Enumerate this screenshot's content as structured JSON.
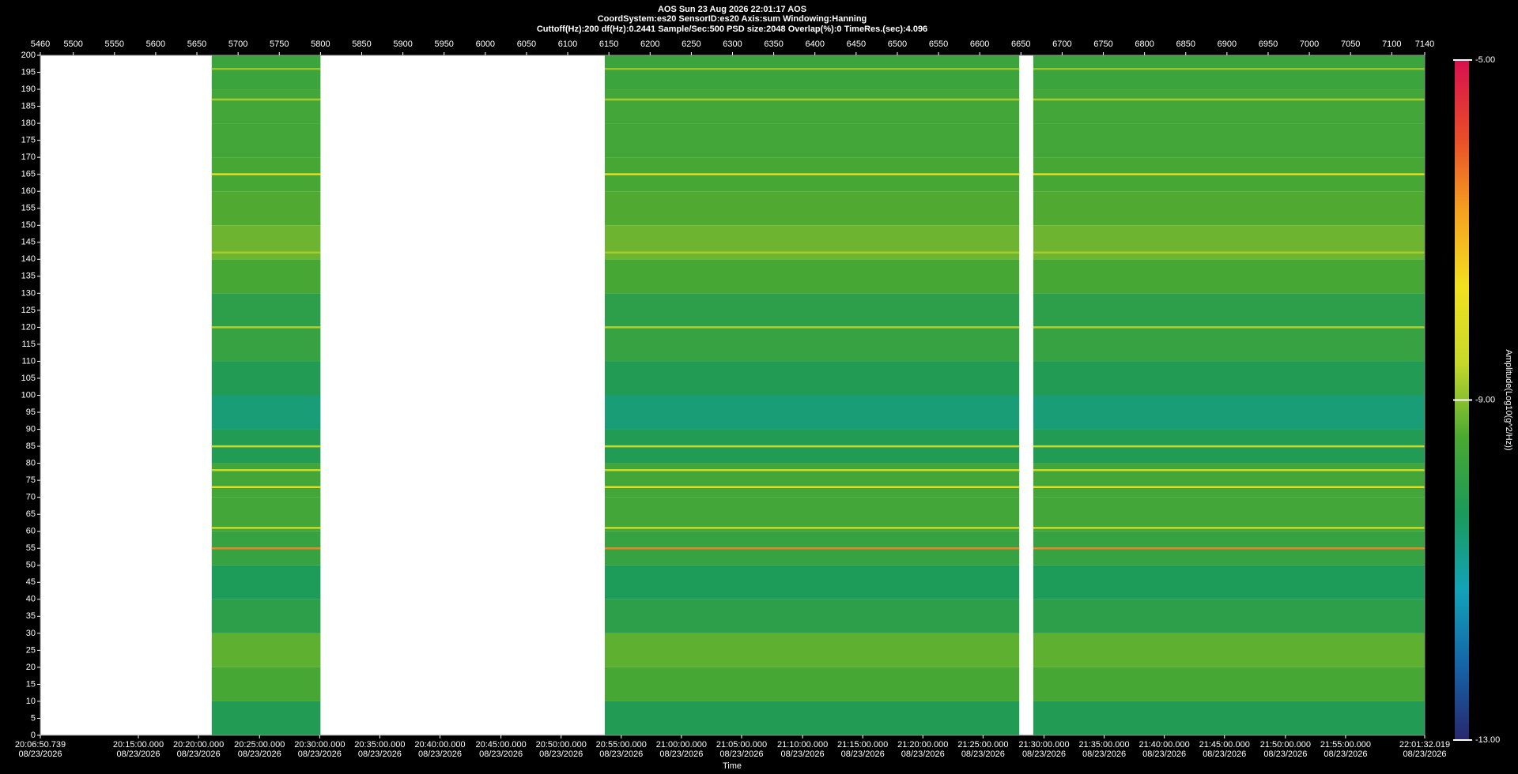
{
  "chart_data": {
    "type": "spectrogram",
    "header": [
      "AOS  Sun 23 Aug 2026 22:01:17  AOS",
      "CoordSystem:es20   SensorID:es20    Axis:sum    Windowing:Hanning",
      "Cuttoff(Hz):200      df(Hz):0.2441      Sample/Sec:500      PSD size:2048      Overlap(%):0          TimeRes.(sec):4.096"
    ],
    "xlabel": "Time",
    "xlim": [
      5460,
      7140
    ],
    "xticks": [
      5460,
      5500,
      5550,
      5600,
      5650,
      5700,
      5750,
      5800,
      5850,
      5900,
      5950,
      6000,
      6050,
      6100,
      6150,
      6200,
      6250,
      6300,
      6350,
      6400,
      6450,
      6500,
      6550,
      6600,
      6650,
      6700,
      6750,
      6800,
      6850,
      6900,
      6950,
      7000,
      7050,
      7100,
      7140
    ],
    "time_ticks": [
      {
        "value": 5460,
        "label": "20:06:50.739"
      },
      {
        "value": 5579,
        "label": "20:15:00.000"
      },
      {
        "value": 5652,
        "label": "20:20:00.000"
      },
      {
        "value": 5726,
        "label": "20:25:00.000"
      },
      {
        "value": 5799,
        "label": "20:30:00.000"
      },
      {
        "value": 5872,
        "label": "20:35:00.000"
      },
      {
        "value": 5945,
        "label": "20:40:00.000"
      },
      {
        "value": 6019,
        "label": "20:45:00.000"
      },
      {
        "value": 6092,
        "label": "20:50:00.000"
      },
      {
        "value": 6165,
        "label": "20:55:00.000"
      },
      {
        "value": 6238,
        "label": "21:00:00.000"
      },
      {
        "value": 6311,
        "label": "21:05:00.000"
      },
      {
        "value": 6385,
        "label": "21:10:00.000"
      },
      {
        "value": 6458,
        "label": "21:15:00.000"
      },
      {
        "value": 6531,
        "label": "21:20:00.000"
      },
      {
        "value": 6604,
        "label": "21:25:00.000"
      },
      {
        "value": 6678,
        "label": "21:30:00.000"
      },
      {
        "value": 6751,
        "label": "21:35:00.000"
      },
      {
        "value": 6824,
        "label": "21:40:00.000"
      },
      {
        "value": 6897,
        "label": "21:45:00.000"
      },
      {
        "value": 6971,
        "label": "21:50:00.000"
      },
      {
        "value": 7044,
        "label": "21:55:00.000"
      },
      {
        "value": 7140,
        "label": "22:01:32.019"
      }
    ],
    "time_tick_dates": [
      "08/23/2026",
      "08/23/2026",
      "08/23/2026",
      "08/23/2026",
      "08/23/2026",
      "08/23/2026",
      "08/23/2026",
      "08/23/2026",
      "08/23/2026",
      "08/23/2026",
      "08/23/2026",
      "08/23/2026",
      "08/23/2026",
      "08/23/2026",
      "08/23/2026",
      "08/23/2026",
      "08/23/2026",
      "08/23/2026",
      "08/23/2026",
      "08/23/2026",
      "08/23/2026",
      "08/23/2026",
      "08/23/2026"
    ],
    "ylim": [
      0,
      200
    ],
    "yticks": [
      0,
      5,
      10,
      15,
      20,
      25,
      30,
      35,
      40,
      45,
      50,
      55,
      60,
      65,
      70,
      75,
      80,
      85,
      90,
      95,
      100,
      105,
      110,
      115,
      120,
      125,
      130,
      135,
      140,
      145,
      150,
      155,
      160,
      165,
      170,
      175,
      180,
      185,
      190,
      195,
      200
    ],
    "segments": [
      [
        5668,
        5800
      ],
      [
        6145,
        6648
      ],
      [
        6665,
        7140
      ]
    ],
    "profile": {
      "bins": [
        0,
        10,
        20,
        30,
        40,
        50,
        60,
        70,
        80,
        90,
        100,
        110,
        120,
        130,
        140,
        150,
        160,
        170,
        180,
        190,
        200
      ],
      "values": [
        -10.2,
        -9.5,
        -9.3,
        -10,
        -10.3,
        -9.8,
        -9.6,
        -9.6,
        -10.2,
        -10.6,
        -10.2,
        -9.8,
        -10,
        -9.5,
        -9.2,
        -9.4,
        -9.5,
        -9.6,
        -9.6,
        -9.7
      ]
    },
    "lines": {
      "freqs": [
        55,
        61,
        73,
        78,
        85,
        120,
        142,
        165,
        187,
        196
      ],
      "amplitudes": [
        -6.5,
        -8.5,
        -8,
        -8.5,
        -8.5,
        -8.7,
        -8.8,
        -8,
        -8.8,
        -8.9
      ]
    },
    "colorbar": {
      "label": "Amplitude(Log10(g^2/Hz))",
      "lim": [
        -13,
        -5
      ],
      "ticks": [
        {
          "value": -13,
          "label": "-13.00"
        },
        {
          "value": -9,
          "label": "-9.00"
        },
        {
          "value": -5,
          "label": "-5.00"
        }
      ]
    },
    "colormap": [
      "#28276e",
      "#1565a8",
      "#12a3b8",
      "#1b9a5a",
      "#4aa832",
      "#c8d82a",
      "#f2e020",
      "#f5a020",
      "#e84a2a",
      "#d8104f"
    ]
  }
}
